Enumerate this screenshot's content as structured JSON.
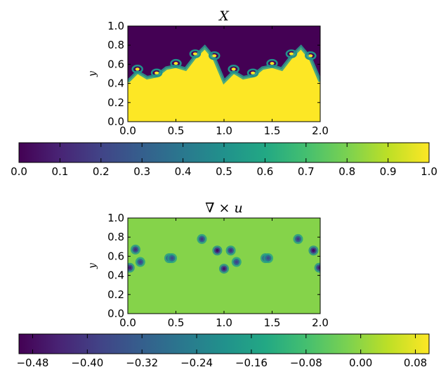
{
  "chart_data": [
    {
      "type": "heatmap",
      "title": "X",
      "xlabel": "",
      "ylabel": "y",
      "xlim": [
        0.0,
        2.0
      ],
      "ylim": [
        0.0,
        1.0
      ],
      "xticks": [
        "0.0",
        "0.5",
        "1.0",
        "1.5",
        "2.0"
      ],
      "yticks": [
        "0.0",
        "0.2",
        "0.4",
        "0.6",
        "0.8",
        "1.0"
      ],
      "interface": {
        "x": [
          0.0,
          0.1,
          0.2,
          0.3,
          0.4,
          0.5,
          0.6,
          0.7,
          0.8,
          0.9,
          1.0,
          1.1,
          1.2,
          1.3,
          1.4,
          1.5,
          1.6,
          1.7,
          1.8,
          1.9,
          2.0
        ],
        "y": [
          0.42,
          0.52,
          0.46,
          0.48,
          0.56,
          0.58,
          0.55,
          0.68,
          0.78,
          0.66,
          0.42,
          0.52,
          0.46,
          0.48,
          0.56,
          0.58,
          0.55,
          0.68,
          0.78,
          0.66,
          0.42
        ]
      },
      "colorbar": {
        "range": [
          0.0,
          1.0
        ],
        "ticks": [
          "0.0",
          "0.1",
          "0.2",
          "0.3",
          "0.4",
          "0.5",
          "0.6",
          "0.7",
          "0.8",
          "0.9",
          "1.0"
        ]
      }
    },
    {
      "type": "heatmap",
      "title": "∇ × u",
      "xlabel": "",
      "ylabel": "y",
      "xlim": [
        0.0,
        2.0
      ],
      "ylim": [
        0.0,
        1.0
      ],
      "xticks": [
        "0.0",
        "0.5",
        "1.0",
        "1.5",
        "2.0"
      ],
      "yticks": [
        "0.0",
        "0.2",
        "0.4",
        "0.6",
        "0.8",
        "1.0"
      ],
      "background_value": -0.01,
      "vortices": [
        {
          "x": 0.08,
          "y": 0.67,
          "value": -0.42
        },
        {
          "x": 0.13,
          "y": 0.54,
          "value": -0.38
        },
        {
          "x": 0.02,
          "y": 0.48,
          "value": -0.45
        },
        {
          "x": 0.43,
          "y": 0.58,
          "value": -0.4
        },
        {
          "x": 0.46,
          "y": 0.58,
          "value": -0.36
        },
        {
          "x": 0.77,
          "y": 0.78,
          "value": -0.4
        },
        {
          "x": 0.93,
          "y": 0.66,
          "value": -0.48
        },
        {
          "x": 1.07,
          "y": 0.66,
          "value": -0.42
        },
        {
          "x": 1.0,
          "y": 0.47,
          "value": -0.46
        },
        {
          "x": 1.13,
          "y": 0.54,
          "value": -0.38
        },
        {
          "x": 1.43,
          "y": 0.58,
          "value": -0.4
        },
        {
          "x": 1.46,
          "y": 0.58,
          "value": -0.36
        },
        {
          "x": 1.77,
          "y": 0.78,
          "value": -0.4
        },
        {
          "x": 1.93,
          "y": 0.66,
          "value": -0.48
        },
        {
          "x": 1.99,
          "y": 0.48,
          "value": -0.45
        }
      ],
      "colorbar": {
        "range": [
          -0.5,
          0.1
        ],
        "tick_values": [
          -0.48,
          -0.4,
          -0.32,
          -0.24,
          -0.16,
          -0.08,
          0.0,
          0.08
        ],
        "ticks": [
          "−0.48",
          "−0.40",
          "−0.32",
          "−0.24",
          "−0.16",
          "−0.08",
          "0.00",
          "0.08"
        ]
      }
    }
  ]
}
